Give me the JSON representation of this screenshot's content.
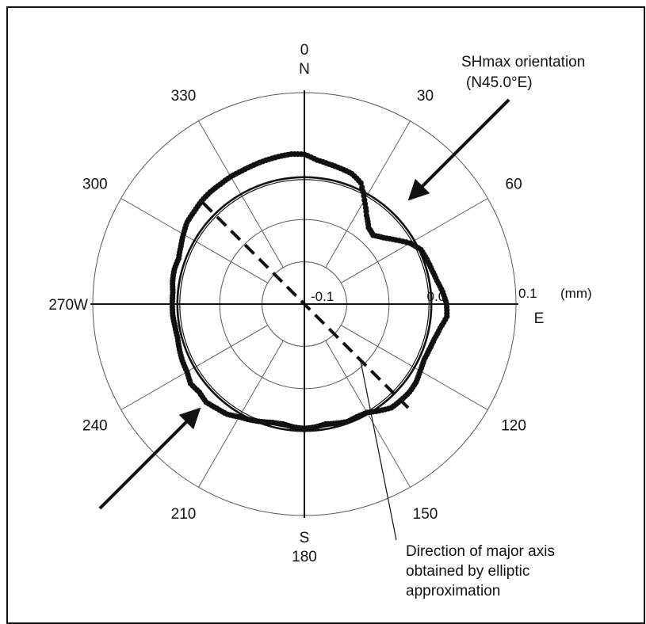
{
  "chart_data": {
    "type": "scatter",
    "coordinate_system": "polar",
    "radial_unit": "(mm)",
    "radial_ticks": [
      {
        "value": -0.1,
        "label": "-0.1"
      },
      {
        "value": 0.0,
        "label": "0.0"
      },
      {
        "value": 0.1,
        "label": "0.1"
      }
    ],
    "radial_range": [
      -0.15,
      0.1
    ],
    "angle_labels": [
      {
        "angle": 0,
        "label": "0"
      },
      {
        "angle": 30,
        "label": "30"
      },
      {
        "angle": 60,
        "label": "60"
      },
      {
        "angle": 120,
        "label": "120"
      },
      {
        "angle": 150,
        "label": "150"
      },
      {
        "angle": 180,
        "label": "180"
      },
      {
        "angle": 210,
        "label": "210"
      },
      {
        "angle": 240,
        "label": "240"
      },
      {
        "angle": 270,
        "label": "270W"
      },
      {
        "angle": 300,
        "label": "300"
      },
      {
        "angle": 330,
        "label": "330"
      }
    ],
    "direction_labels": [
      {
        "angle": 0,
        "label": "N"
      },
      {
        "angle": 90,
        "label": "E"
      },
      {
        "angle": 180,
        "label": "S"
      }
    ],
    "spoke_interval_deg": 30,
    "grid": true,
    "series": [
      {
        "kind": "points",
        "points": [
          [
            0,
            0.027
          ],
          [
            5,
            0.021
          ],
          [
            10,
            0.018
          ],
          [
            15,
            0.016
          ],
          [
            20,
            0.014
          ],
          [
            25,
            0.008
          ],
          [
            30,
            -0.008
          ],
          [
            35,
            -0.022
          ],
          [
            40,
            -0.032
          ],
          [
            45,
            -0.035
          ],
          [
            50,
            -0.028
          ],
          [
            55,
            -0.018
          ],
          [
            60,
            -0.006
          ],
          [
            65,
            0.002
          ],
          [
            70,
            0.004
          ],
          [
            75,
            0.006
          ],
          [
            80,
            0.009
          ],
          [
            85,
            0.014
          ],
          [
            90,
            0.018
          ],
          [
            95,
            0.019
          ],
          [
            100,
            0.013
          ],
          [
            105,
            0.009
          ],
          [
            110,
            0.007
          ],
          [
            115,
            0.006
          ],
          [
            120,
            0.008
          ],
          [
            125,
            0.011
          ],
          [
            130,
            0.012
          ],
          [
            135,
            0.011
          ],
          [
            140,
            0.01
          ],
          [
            145,
            0.004
          ],
          [
            150,
            -0.002
          ],
          [
            155,
            -0.003
          ],
          [
            160,
            -0.002
          ],
          [
            165,
            -0.004
          ],
          [
            170,
            -0.006
          ],
          [
            175,
            -0.004
          ],
          [
            180,
            -0.003
          ],
          [
            185,
            -0.004
          ],
          [
            190,
            -0.006
          ],
          [
            195,
            -0.005
          ],
          [
            200,
            -0.002
          ],
          [
            205,
            0.001
          ],
          [
            210,
            0.004
          ],
          [
            215,
            0.009
          ],
          [
            220,
            0.011
          ],
          [
            225,
            0.014
          ],
          [
            230,
            0.012
          ],
          [
            235,
            0.014
          ],
          [
            240,
            0.01
          ],
          [
            245,
            0.009
          ],
          [
            250,
            0.007
          ],
          [
            255,
            0.005
          ],
          [
            260,
            0.005
          ],
          [
            265,
            0.006
          ],
          [
            270,
            0.006
          ],
          [
            275,
            0.006
          ],
          [
            280,
            0.008
          ],
          [
            285,
            0.009
          ],
          [
            290,
            0.008
          ],
          [
            295,
            0.011
          ],
          [
            300,
            0.015
          ],
          [
            305,
            0.019
          ],
          [
            310,
            0.02
          ],
          [
            315,
            0.022
          ],
          [
            320,
            0.023
          ],
          [
            325,
            0.023
          ],
          [
            330,
            0.024
          ],
          [
            335,
            0.024
          ],
          [
            340,
            0.025
          ],
          [
            345,
            0.026
          ],
          [
            350,
            0.027
          ],
          [
            355,
            0.028
          ]
        ]
      },
      {
        "kind": "circle",
        "radius_value": 0.0
      }
    ],
    "annotations": [
      {
        "text_lines": [
          "SHmax orientation",
          "(N45.0°E)"
        ]
      },
      {
        "text_lines": [
          "Direction of major axis",
          "obtained by elliptic",
          "approximation"
        ]
      }
    ],
    "major_axis_angle": 135,
    "shmax_angle": 45
  },
  "colors": {
    "ink": "#111111",
    "grid": "#555555",
    "background": "#ffffff"
  }
}
